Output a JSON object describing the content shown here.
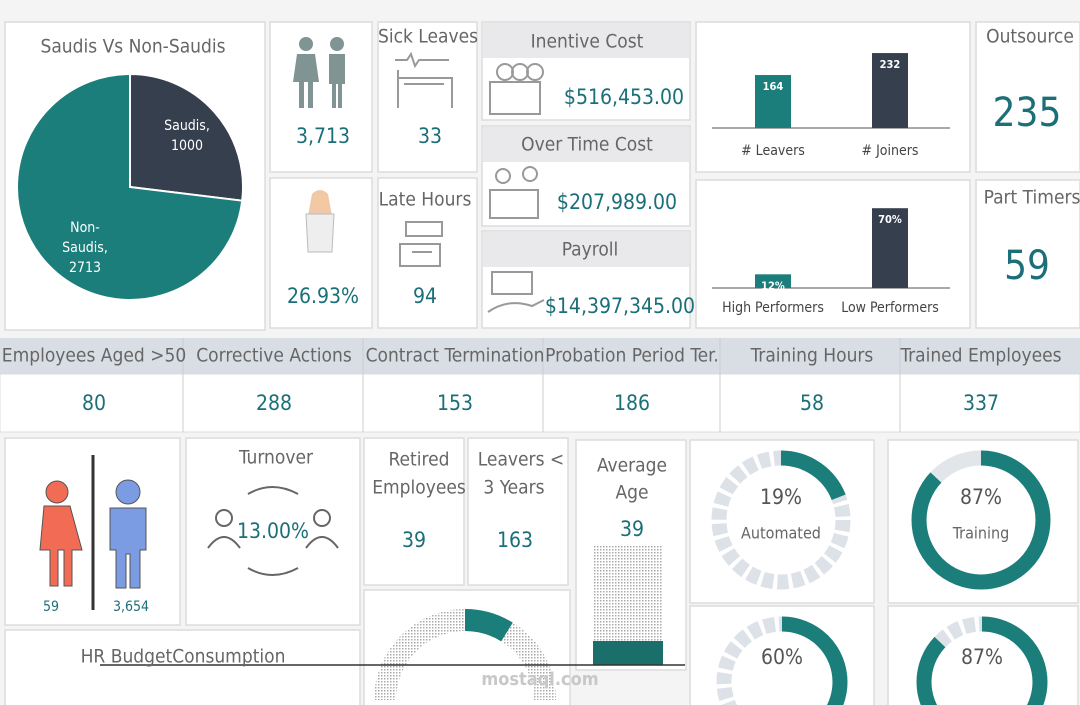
{
  "pie": {
    "title": "Saudis Vs Non-Saudis",
    "slices": [
      {
        "label_lines": [
          "Saudis,"
        ],
        "value": 1000,
        "color": "#363f4e"
      },
      {
        "label_lines": [
          "Non-",
          "Saudis,"
        ],
        "value": 2713,
        "color": "#1b7e7a"
      }
    ]
  },
  "headcount": {
    "total": "3,713",
    "saudi_share": "26.93%"
  },
  "sick_leaves": {
    "title": "Sick Leaves",
    "value": "33"
  },
  "late_hours": {
    "title": "Late Hours",
    "value": "94"
  },
  "costs": [
    {
      "title": "Inentive Cost",
      "value": "$516,453.00"
    },
    {
      "title": "Over Time Cost",
      "value": "$207,989.00"
    },
    {
      "title": "Payroll",
      "value": "$14,397,345.00"
    }
  ],
  "movement": {
    "categories": [
      "# Leavers",
      "# Joiners"
    ],
    "values": [
      164,
      232
    ],
    "colors": [
      "#1b7e7a",
      "#363f4e"
    ]
  },
  "performance": {
    "categories": [
      "High Performers",
      "Low Performers"
    ],
    "values": [
      12,
      70
    ],
    "value_labels": [
      "12%",
      "70%"
    ],
    "colors": [
      "#1b7e7a",
      "#363f4e"
    ]
  },
  "outsource": {
    "title": "Outsource",
    "value": "235"
  },
  "part_timers": {
    "title": "Part Timers",
    "value": "59"
  },
  "metrics": [
    {
      "title": "Employees Aged >50",
      "value": "80"
    },
    {
      "title": "Corrective Actions",
      "value": "288"
    },
    {
      "title": "Contract Termination",
      "value": "153"
    },
    {
      "title": "Probation Period Ter.",
      "value": "186"
    },
    {
      "title": "Training Hours",
      "value": "58"
    },
    {
      "title": "Trained Employees",
      "value": "337"
    }
  ],
  "gender": {
    "female": "59",
    "male": "3,654"
  },
  "turnover": {
    "title": "Turnover",
    "value": "13.00%"
  },
  "retired": {
    "title_lines": [
      "Retired",
      "Employees"
    ],
    "value": "39"
  },
  "early_leavers": {
    "title_lines": [
      "Leavers <",
      "3 Years"
    ],
    "value": "163"
  },
  "average_age": {
    "title_lines": [
      "Average",
      "Age"
    ],
    "value": "39"
  },
  "donuts": [
    {
      "value": 19,
      "label": "19%",
      "caption": "Automated",
      "style": "segmented"
    },
    {
      "value": 87,
      "label": "87%",
      "caption": "Training",
      "style": "solid"
    },
    {
      "value": 60,
      "label": "60%",
      "style": "segmented"
    },
    {
      "value": 87,
      "label": "87%",
      "style": "segmented"
    }
  ],
  "hr_budget": {
    "title": "HR BudgetConsumption"
  },
  "watermark": "mostaql.com"
}
